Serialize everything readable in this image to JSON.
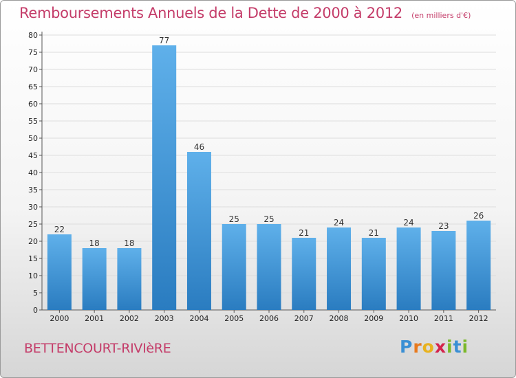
{
  "chart_data": {
    "type": "bar",
    "title": "Remboursements Annuels de la Dette de 2000 à 2012",
    "subtitle": "(en milliers d'€)",
    "categories": [
      "2000",
      "2001",
      "2002",
      "2003",
      "2004",
      "2005",
      "2006",
      "2007",
      "2008",
      "2009",
      "2010",
      "2011",
      "2012"
    ],
    "values": [
      22,
      18,
      18,
      77,
      46,
      25,
      25,
      21,
      24,
      21,
      24,
      23,
      26
    ],
    "ylim": [
      0,
      80
    ],
    "yticks": [
      0,
      5,
      10,
      15,
      20,
      25,
      30,
      35,
      40,
      45,
      50,
      55,
      60,
      65,
      70,
      75,
      80
    ],
    "grid": true,
    "legend": "none"
  },
  "footer": {
    "location": "BETTENCOURT-RIVIèRE",
    "logo_text": "Proxiti"
  },
  "colors": {
    "title": "#c43c69",
    "bar_top": "#5fb0ea",
    "bar_bottom": "#2a7cc0",
    "logo_letters": [
      "#3a8fd4",
      "#e87a1e",
      "#e8b21e",
      "#d4244c",
      "#7ab829",
      "#3a8fd4",
      "#7ab829"
    ]
  }
}
